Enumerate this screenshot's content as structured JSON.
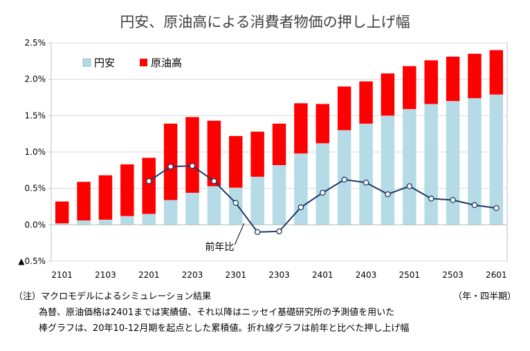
{
  "chart_data": {
    "type": "bar",
    "title": "円安、原油高による消費者物価の押し上げ幅",
    "categories": [
      "2101",
      "2102",
      "2103",
      "2104",
      "2201",
      "2202",
      "2203",
      "2204",
      "2301",
      "2302",
      "2303",
      "2304",
      "2401",
      "2402",
      "2403",
      "2404",
      "2501",
      "2502",
      "2503",
      "2504",
      "2601"
    ],
    "x_tick_labels": [
      "2101",
      "",
      "2103",
      "",
      "2201",
      "",
      "2203",
      "",
      "2301",
      "",
      "2303",
      "",
      "2401",
      "",
      "2403",
      "",
      "2501",
      "",
      "2503",
      "",
      "2601"
    ],
    "stacked": true,
    "series": [
      {
        "name": "円安",
        "kind": "bar",
        "color": "#b4dbe6",
        "values": [
          0.02,
          0.06,
          0.07,
          0.12,
          0.15,
          0.34,
          0.44,
          0.53,
          0.51,
          0.66,
          0.82,
          0.98,
          1.12,
          1.3,
          1.39,
          1.5,
          1.59,
          1.66,
          1.7,
          1.74,
          1.79
        ]
      },
      {
        "name": "原油高",
        "kind": "bar",
        "color": "#ff0000",
        "values": [
          0.3,
          0.53,
          0.61,
          0.71,
          0.77,
          1.05,
          1.04,
          0.9,
          0.71,
          0.62,
          0.57,
          0.69,
          0.54,
          0.6,
          0.58,
          0.58,
          0.59,
          0.6,
          0.61,
          0.61,
          0.61
        ]
      },
      {
        "name": "前年比",
        "kind": "line",
        "color": "#1f3864",
        "values": [
          null,
          null,
          null,
          null,
          0.6,
          0.8,
          0.81,
          0.6,
          0.3,
          -0.1,
          -0.09,
          0.24,
          0.44,
          0.62,
          0.58,
          0.42,
          0.53,
          0.36,
          0.34,
          0.27,
          0.23
        ]
      }
    ],
    "line_label": "前年比",
    "ylim": [
      -0.5,
      2.5
    ],
    "y_ticks": [
      {
        "value": -0.5,
        "label": "▲0.5%"
      },
      {
        "value": 0.0,
        "label": "0.0%"
      },
      {
        "value": 0.5,
        "label": "0.5%"
      },
      {
        "value": 1.0,
        "label": "1.0%"
      },
      {
        "value": 1.5,
        "label": "1.5%"
      },
      {
        "value": 2.0,
        "label": "2.0%"
      },
      {
        "value": 2.5,
        "label": "2.5%"
      }
    ],
    "grid": true,
    "legend": "top-left",
    "axis_color": "#bfbfbf"
  },
  "notes": {
    "line1": "（注）マクロモデルによるシミュレーション結果",
    "line2": "為替、原油価格は2401までは実績値、それ以降はニッセイ基礎研究所の予測値を用いた",
    "line3": "棒グラフは、20年10-12月期を起点とした累積値。折れ線グラフは前年と比べた押し上げ幅",
    "period": "（年・四半期）"
  }
}
